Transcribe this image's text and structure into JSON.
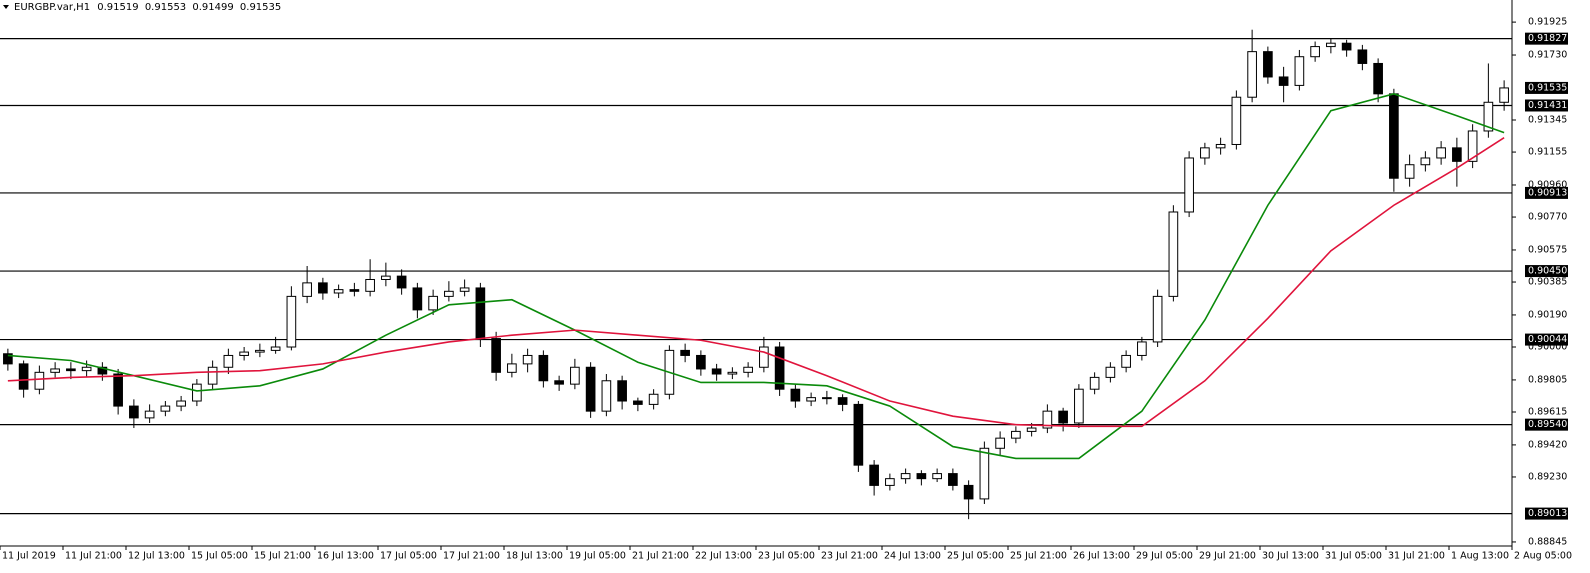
{
  "chart_data": {
    "type": "candlestick",
    "symbol": "EURGBP.var,H1",
    "header_values": [
      0.91519,
      0.91553,
      0.91499,
      0.91535
    ],
    "ylim": [
      0.88821,
      0.92056
    ],
    "yticks": [
      0.91925,
      {
        "value": 0.9173,
        "label": "0.91730"
      },
      0.91345,
      0.91155,
      {
        "value": 0.9096,
        "label": "0.90960"
      },
      {
        "value": 0.9077,
        "label": "0.90770"
      },
      0.90575,
      0.90385,
      {
        "value": 0.9019,
        "label": "0.90190"
      },
      {
        "value": 0.9,
        "label": "0.90000"
      },
      0.89805,
      0.89615,
      {
        "value": 0.8942,
        "label": "0.89420"
      },
      {
        "value": 0.8923,
        "label": "0.89230"
      },
      0.88845
    ],
    "levels": [
      0.91827,
      0.91431,
      0.90913,
      {
        "value": 0.9045,
        "label": "0.90450"
      },
      0.90044,
      {
        "value": 0.8954,
        "label": "0.89540"
      },
      0.89013
    ],
    "categories": [
      "11 Jul 2019",
      "11 Jul 21:00",
      "12 Jul 13:00",
      "15 Jul 05:00",
      "15 Jul 21:00",
      "16 Jul 13:00",
      "17 Jul 05:00",
      "17 Jul 21:00",
      "18 Jul 13:00",
      "19 Jul 05:00",
      "21 Jul 21:00",
      "22 Jul 13:00",
      "23 Jul 05:00",
      "23 Jul 21:00",
      "24 Jul 13:00",
      "25 Jul 05:00",
      "25 Jul 21:00",
      "26 Jul 13:00",
      "29 Jul 05:00",
      "29 Jul 21:00",
      "30 Jul 13:00",
      "31 Jul 05:00",
      "31 Jul 21:00",
      "1 Aug 13:00",
      "2 Aug 05:00"
    ],
    "ohlc": [
      [
        0.8996,
        0.8999,
        0.8986,
        0.899
      ],
      [
        0.899,
        0.8992,
        0.897,
        0.8975
      ],
      [
        0.8975,
        0.8989,
        0.8972,
        0.8985
      ],
      [
        0.8985,
        0.8991,
        0.8982,
        0.8987
      ],
      [
        0.8987,
        0.8991,
        0.8981,
        0.8986
      ],
      [
        0.8986,
        0.8992,
        0.8982,
        0.8988
      ],
      [
        0.8988,
        0.8991,
        0.898,
        0.8984
      ],
      [
        0.8984,
        0.8987,
        0.896,
        0.8965
      ],
      [
        0.8965,
        0.8969,
        0.8952,
        0.8958
      ],
      [
        0.8958,
        0.8966,
        0.8955,
        0.8962
      ],
      [
        0.8962,
        0.8968,
        0.8959,
        0.8965
      ],
      [
        0.8965,
        0.8971,
        0.8962,
        0.8968
      ],
      [
        0.8968,
        0.8981,
        0.8965,
        0.8978
      ],
      [
        0.8978,
        0.8992,
        0.8975,
        0.8988
      ],
      [
        0.8988,
        0.8999,
        0.8984,
        0.8995
      ],
      [
        0.8995,
        0.9,
        0.8992,
        0.8997
      ],
      [
        0.8997,
        0.9002,
        0.8994,
        0.8998
      ],
      [
        0.8998,
        0.9006,
        0.8996,
        0.9
      ],
      [
        0.9,
        0.9036,
        0.8998,
        0.903
      ],
      [
        0.903,
        0.9048,
        0.9026,
        0.9038
      ],
      [
        0.9038,
        0.9041,
        0.9028,
        0.9032
      ],
      [
        0.9032,
        0.9037,
        0.9029,
        0.9034
      ],
      [
        0.9034,
        0.9038,
        0.903,
        0.9033
      ],
      [
        0.9033,
        0.9052,
        0.903,
        0.904
      ],
      [
        0.904,
        0.905,
        0.9036,
        0.9042
      ],
      [
        0.9042,
        0.9046,
        0.9031,
        0.9035
      ],
      [
        0.9035,
        0.9038,
        0.9017,
        0.9022
      ],
      [
        0.9022,
        0.9034,
        0.9019,
        0.903
      ],
      [
        0.903,
        0.9039,
        0.9027,
        0.9033
      ],
      [
        0.9033,
        0.904,
        0.903,
        0.9035
      ],
      [
        0.9035,
        0.9038,
        0.9,
        0.9005
      ],
      [
        0.9005,
        0.9009,
        0.898,
        0.8985
      ],
      [
        0.8985,
        0.8996,
        0.8982,
        0.899
      ],
      [
        0.899,
        0.8999,
        0.8985,
        0.8995
      ],
      [
        0.8995,
        0.8998,
        0.8976,
        0.898
      ],
      [
        0.898,
        0.8983,
        0.8974,
        0.8978
      ],
      [
        0.8978,
        0.8993,
        0.8975,
        0.8988
      ],
      [
        0.8988,
        0.8991,
        0.8958,
        0.8962
      ],
      [
        0.8962,
        0.8984,
        0.8959,
        0.898
      ],
      [
        0.898,
        0.8983,
        0.8963,
        0.8968
      ],
      [
        0.8968,
        0.897,
        0.8962,
        0.8966
      ],
      [
        0.8966,
        0.8975,
        0.8963,
        0.8972
      ],
      [
        0.8972,
        0.9001,
        0.8969,
        0.8998
      ],
      [
        0.8998,
        0.9002,
        0.8991,
        0.8995
      ],
      [
        0.8995,
        0.8998,
        0.8983,
        0.8987
      ],
      [
        0.8987,
        0.899,
        0.898,
        0.8984
      ],
      [
        0.8984,
        0.8988,
        0.8981,
        0.8985
      ],
      [
        0.8985,
        0.8991,
        0.8982,
        0.8988
      ],
      [
        0.8988,
        0.9006,
        0.8985,
        0.9
      ],
      [
        0.9,
        0.9003,
        0.8971,
        0.8975
      ],
      [
        0.8975,
        0.8978,
        0.8964,
        0.8968
      ],
      [
        0.8968,
        0.8973,
        0.8965,
        0.897
      ],
      [
        0.897,
        0.8974,
        0.8966,
        0.897
      ],
      [
        0.897,
        0.8972,
        0.8962,
        0.8966
      ],
      [
        0.8966,
        0.8968,
        0.8926,
        0.893
      ],
      [
        0.893,
        0.8933,
        0.8912,
        0.8918
      ],
      [
        0.8918,
        0.8925,
        0.8915,
        0.8922
      ],
      [
        0.8922,
        0.8928,
        0.8919,
        0.8925
      ],
      [
        0.8925,
        0.8927,
        0.8918,
        0.8922
      ],
      [
        0.8922,
        0.8928,
        0.892,
        0.8925
      ],
      [
        0.8925,
        0.8928,
        0.8915,
        0.8918
      ],
      [
        0.8918,
        0.8921,
        0.8898,
        0.891
      ],
      [
        0.891,
        0.8944,
        0.8907,
        0.894
      ],
      [
        0.894,
        0.895,
        0.8936,
        0.8946
      ],
      [
        0.8946,
        0.8953,
        0.8943,
        0.895
      ],
      [
        0.895,
        0.8955,
        0.8947,
        0.8952
      ],
      [
        0.8952,
        0.8966,
        0.8949,
        0.8962
      ],
      [
        0.8962,
        0.8964,
        0.895,
        0.8955
      ],
      [
        0.8955,
        0.8978,
        0.8952,
        0.8975
      ],
      [
        0.8975,
        0.8985,
        0.8972,
        0.8982
      ],
      [
        0.8982,
        0.8991,
        0.8979,
        0.8988
      ],
      [
        0.8988,
        0.8998,
        0.8985,
        0.8995
      ],
      [
        0.8995,
        0.9006,
        0.8992,
        0.9003
      ],
      [
        0.9003,
        0.9034,
        0.9,
        0.903
      ],
      [
        0.903,
        0.9084,
        0.9027,
        0.908
      ],
      [
        0.908,
        0.9116,
        0.9077,
        0.9112
      ],
      [
        0.9112,
        0.9121,
        0.9108,
        0.9118
      ],
      [
        0.9118,
        0.9124,
        0.9114,
        0.912
      ],
      [
        0.912,
        0.9152,
        0.9117,
        0.9148
      ],
      [
        0.9148,
        0.9188,
        0.9145,
        0.9175
      ],
      [
        0.9175,
        0.9178,
        0.9156,
        0.916
      ],
      [
        0.916,
        0.9166,
        0.9145,
        0.9155
      ],
      [
        0.9155,
        0.9176,
        0.9152,
        0.9172
      ],
      [
        0.9172,
        0.9181,
        0.9169,
        0.9178
      ],
      [
        0.9178,
        0.9183,
        0.9174,
        0.918
      ],
      [
        0.918,
        0.9182,
        0.9172,
        0.9176
      ],
      [
        0.9176,
        0.9179,
        0.9164,
        0.9168
      ],
      [
        0.9168,
        0.9171,
        0.9145,
        0.915
      ],
      [
        0.915,
        0.9153,
        0.9092,
        0.91
      ],
      [
        0.91,
        0.9114,
        0.9095,
        0.9108
      ],
      [
        0.9108,
        0.9116,
        0.9104,
        0.9112
      ],
      [
        0.9112,
        0.9122,
        0.9108,
        0.9118
      ],
      [
        0.9118,
        0.9124,
        0.9095,
        0.911
      ],
      [
        0.911,
        0.9132,
        0.9106,
        0.9128
      ],
      [
        0.9128,
        0.9168,
        0.9124,
        0.9145
      ],
      [
        0.9145,
        0.9158,
        0.914,
        0.91535
      ]
    ],
    "series": [
      {
        "color": "#0a8a0a",
        "x": [
          0,
          4,
          8,
          12,
          16,
          20,
          24,
          28,
          32,
          36,
          40,
          44,
          48,
          52,
          56,
          60,
          64,
          68,
          72,
          76,
          80,
          84,
          88,
          92,
          95
        ],
        "values": [
          0.8995,
          0.8992,
          0.8983,
          0.8974,
          0.8977,
          0.8987,
          0.9007,
          0.9025,
          0.9028,
          0.901,
          0.8991,
          0.8979,
          0.8979,
          0.8977,
          0.8965,
          0.8941,
          0.8934,
          0.8934,
          0.8962,
          0.9016,
          0.9084,
          0.914,
          0.915,
          0.9137,
          0.9127
        ]
      },
      {
        "color": "#e0143c",
        "x": [
          0,
          4,
          8,
          12,
          16,
          20,
          24,
          28,
          32,
          36,
          40,
          44,
          48,
          52,
          56,
          60,
          64,
          68,
          72,
          76,
          80,
          84,
          88,
          92,
          95
        ],
        "values": [
          0.898,
          0.8982,
          0.8983,
          0.8985,
          0.8986,
          0.899,
          0.8997,
          0.9003,
          0.9007,
          0.901,
          0.9007,
          0.9004,
          0.8997,
          0.8983,
          0.8968,
          0.8959,
          0.8954,
          0.8953,
          0.8953,
          0.898,
          0.9017,
          0.9057,
          0.9084,
          0.9106,
          0.9124
        ]
      }
    ]
  }
}
